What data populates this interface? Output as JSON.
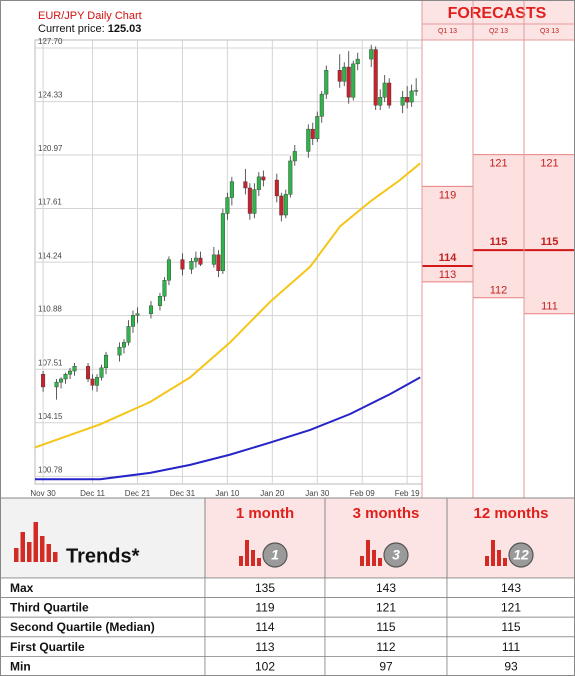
{
  "chart_data": {
    "type": "candlestick",
    "title": "EUR/JPY Daily Chart",
    "subtitle": "Current price:",
    "current_price": 125.03,
    "up_color": "#2fb34a",
    "down_color": "#c8232c",
    "ylim": [
      100.3,
      128.2
    ],
    "yticks": [
      {
        "value": 127.7,
        "label": "127.70"
      },
      124.33,
      120.97,
      117.61,
      114.24,
      110.88,
      107.51,
      104.15,
      100.78
    ],
    "xlim": [
      -1.8,
      84.3
    ],
    "xticks": [
      {
        "value": 0,
        "label": "Nov 30"
      },
      {
        "value": 11,
        "label": "Dec 11"
      },
      {
        "value": 21,
        "label": "Dec 21"
      },
      {
        "value": 31,
        "label": "Dec 31"
      },
      {
        "value": 41,
        "label": "Jan 10"
      },
      {
        "value": 51,
        "label": "Jan 20"
      },
      {
        "value": 61,
        "label": "Jan 30"
      },
      {
        "value": 71,
        "label": "Feb 09"
      },
      {
        "value": 81,
        "label": "Feb 19"
      }
    ],
    "grid": true,
    "candles": {
      "x": [
        0,
        3,
        4,
        5,
        6,
        7,
        10,
        11,
        12,
        13,
        14,
        17,
        18,
        19,
        20,
        21,
        24,
        26,
        27,
        28,
        31,
        33,
        34,
        35,
        38,
        39,
        40,
        41,
        42,
        45,
        46,
        47,
        48,
        49,
        52,
        53,
        54,
        55,
        56,
        59,
        60,
        61,
        62,
        63,
        66,
        67,
        68,
        69,
        70,
        73,
        74,
        75,
        76,
        77,
        80,
        81,
        82,
        83
      ],
      "open": [
        107.2,
        106.4,
        106.7,
        106.9,
        107.2,
        107.4,
        107.7,
        106.9,
        106.5,
        107.0,
        107.6,
        108.4,
        108.9,
        109.2,
        110.2,
        110.9,
        111.0,
        111.5,
        112.1,
        113.1,
        114.4,
        113.8,
        114.3,
        114.5,
        114.1,
        114.7,
        113.7,
        117.3,
        118.3,
        119.3,
        118.9,
        117.3,
        118.8,
        119.6,
        119.4,
        118.4,
        117.2,
        118.5,
        120.6,
        121.2,
        122.6,
        122.0,
        123.4,
        124.8,
        126.3,
        125.6,
        126.5,
        124.6,
        126.7,
        127.0,
        127.6,
        124.1,
        124.6,
        125.5,
        124.1,
        124.6,
        124.3,
        125.0
      ],
      "high": [
        107.4,
        106.9,
        107.0,
        107.3,
        107.6,
        107.9,
        107.9,
        107.2,
        107.2,
        107.8,
        108.6,
        109.2,
        109.4,
        110.6,
        111.2,
        111.4,
        111.8,
        112.3,
        113.3,
        114.6,
        114.8,
        114.5,
        114.9,
        114.9,
        115.2,
        115.0,
        117.6,
        118.6,
        119.6,
        120.1,
        119.2,
        119.2,
        119.9,
        120.0,
        119.8,
        118.6,
        118.8,
        120.9,
        121.6,
        122.9,
        123.0,
        123.7,
        125.0,
        126.6,
        127.3,
        126.8,
        127.5,
        126.9,
        127.4,
        127.9,
        127.8,
        125.1,
        126.0,
        125.8,
        125.0,
        125.3,
        125.4,
        125.8
      ],
      "low": [
        106.1,
        105.6,
        106.3,
        106.6,
        106.9,
        107.1,
        106.7,
        106.2,
        106.1,
        106.8,
        107.2,
        108.0,
        108.5,
        109.0,
        109.8,
        110.4,
        110.7,
        111.2,
        111.8,
        112.8,
        113.4,
        113.5,
        113.9,
        114.0,
        113.9,
        113.3,
        113.5,
        116.9,
        117.8,
        118.5,
        116.9,
        117.0,
        118.4,
        119.0,
        118.0,
        116.8,
        117.0,
        118.3,
        120.3,
        120.8,
        121.6,
        121.8,
        123.0,
        124.5,
        125.2,
        125.3,
        124.2,
        124.4,
        126.3,
        126.5,
        123.8,
        123.8,
        124.3,
        123.9,
        123.6,
        123.9,
        124.0,
        124.7
      ],
      "close": [
        106.4,
        106.7,
        106.9,
        107.2,
        107.4,
        107.7,
        106.9,
        106.5,
        107.0,
        107.6,
        108.4,
        108.9,
        109.2,
        110.2,
        110.9,
        111.0,
        111.5,
        112.1,
        113.1,
        114.4,
        113.8,
        114.3,
        114.5,
        114.1,
        114.7,
        113.7,
        117.3,
        118.3,
        119.3,
        118.9,
        117.3,
        118.8,
        119.6,
        119.4,
        118.4,
        117.2,
        118.5,
        120.6,
        121.2,
        122.6,
        122.0,
        123.4,
        124.8,
        126.3,
        125.6,
        126.5,
        124.6,
        126.7,
        127.0,
        127.6,
        124.1,
        124.6,
        125.5,
        124.1,
        124.6,
        124.3,
        125.0,
        125.03
      ]
    },
    "series": [
      {
        "color": "#f5c518",
        "x": [
          -1.8,
          12.7,
          23.8,
          32.7,
          41.6,
          50.5,
          59.4,
          66.1,
          72.8,
          79.4,
          83.9
        ],
        "values": [
          102.6,
          104.05,
          105.45,
          107.0,
          109.2,
          111.75,
          113.95,
          116.5,
          118.05,
          119.4,
          120.45
        ]
      },
      {
        "color": "#2424c8",
        "x": [
          -1.8,
          12.7,
          23.8,
          32.7,
          41.6,
          50.5,
          59.4,
          68.3,
          77.2,
          83.9
        ],
        "values": [
          100.6,
          100.6,
          101.0,
          101.5,
          102.15,
          102.9,
          103.7,
          104.7,
          105.95,
          107.0
        ]
      }
    ],
    "forecast": {
      "title": "FORECASTS",
      "periods": [
        "Q1 13",
        "Q2 13",
        "Q3 13"
      ]
    }
  },
  "table": {
    "title": "Trends*",
    "columns": [
      {
        "label": "1 month",
        "badge": "1"
      },
      {
        "label": "3 months",
        "badge": "3"
      },
      {
        "label": "12 months",
        "badge": "12"
      }
    ],
    "rows": [
      [
        "Max",
        135,
        143,
        143
      ],
      [
        "Third Quartile",
        119,
        121,
        121
      ],
      [
        "Second Quartile (Median)",
        114,
        115,
        115
      ],
      [
        "First Quartile",
        113,
        112,
        111
      ],
      [
        "Min",
        102,
        97,
        93
      ]
    ]
  }
}
